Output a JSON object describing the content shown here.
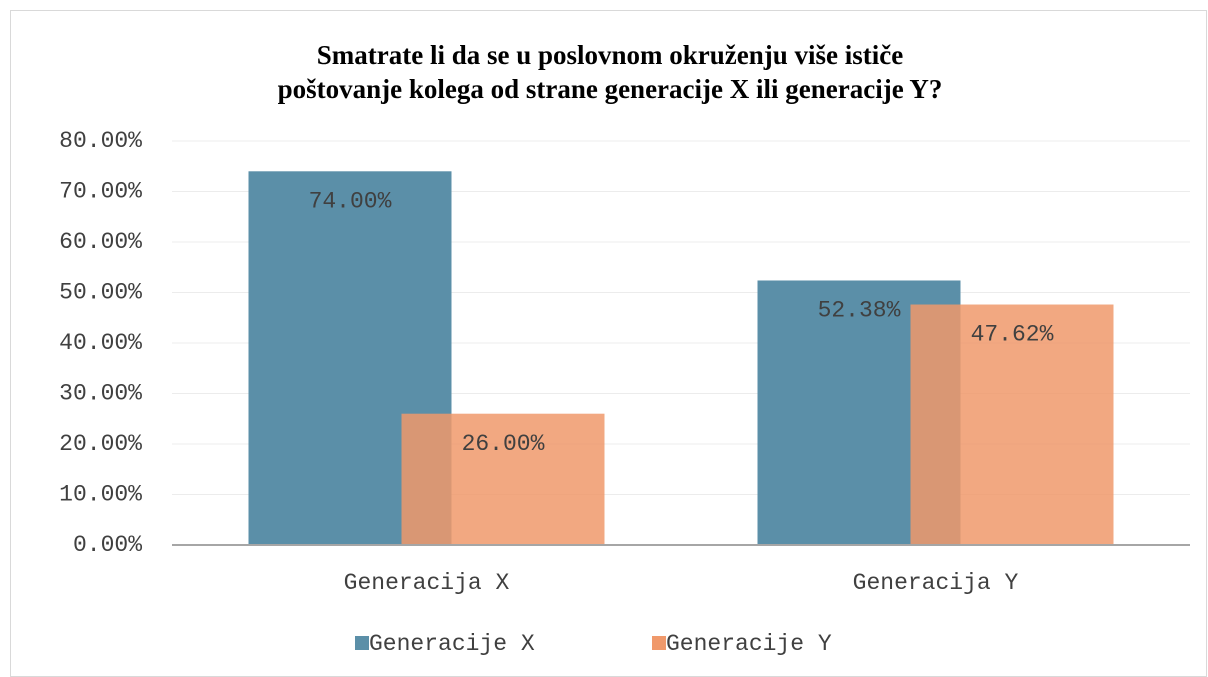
{
  "chart_data": {
    "type": "bar",
    "title": "Smatrate li da se u poslovnom okruženju više ističe poštovanje kolega od strane generacije X ili generacije Y?",
    "categories": [
      "Generacija X",
      "Generacija Y"
    ],
    "series": [
      {
        "name": "Generacije X",
        "color": "#5b8fa8",
        "values": [
          74,
          52.38
        ],
        "value_labels": [
          "74.00%",
          "52.38%"
        ]
      },
      {
        "name": "Generacije Y",
        "color": "#f0996b",
        "values": [
          26,
          47.62
        ],
        "value_labels": [
          "26.00%",
          "47.62%"
        ]
      }
    ],
    "ylim": [
      0,
      80
    ],
    "yticks": [
      {
        "value": 0,
        "label": "0.00%"
      },
      {
        "value": 10,
        "label": "10.00%"
      },
      {
        "value": 20,
        "label": "20.00%"
      },
      {
        "value": 30,
        "label": "30.00%"
      },
      {
        "value": 40,
        "label": "40.00%"
      },
      {
        "value": 50,
        "label": "50.00%"
      },
      {
        "value": 60,
        "label": "60.00%"
      },
      {
        "value": 70,
        "label": "70.00%"
      },
      {
        "value": 80,
        "label": "80.00%"
      }
    ],
    "grid": true,
    "legend": "bottom"
  }
}
